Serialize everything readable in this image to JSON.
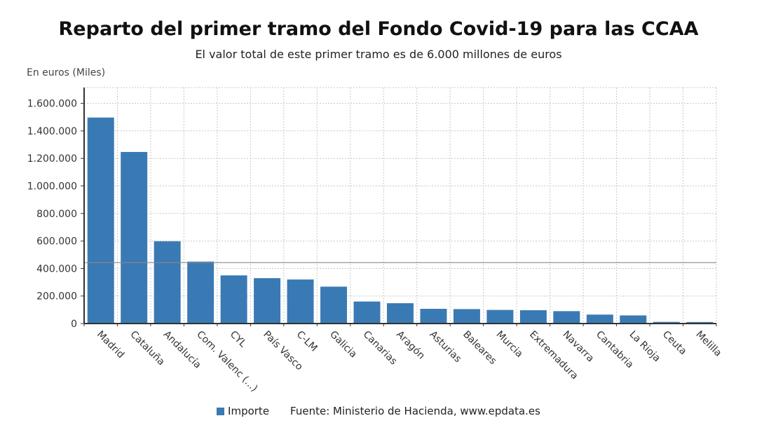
{
  "title": "Reparto del primer tramo del Fondo Covid-19 para las CCAA",
  "subtitle": "El valor total de este primer tramo es de 6.000 millones de euros",
  "unit_label": "En euros (Miles)",
  "legend": {
    "series_label": "Importe",
    "source": "Fuente: Ministerio de Hacienda, www.epdata.es"
  },
  "colors": {
    "bar": "#3a7ab4",
    "grid": "#c8c8c8",
    "axis": "#333333",
    "ref_line": "#888888"
  },
  "chart_data": {
    "type": "bar",
    "categories": [
      "Madrid",
      "Cataluña",
      "Andalucía",
      "Com. Valenc (...)",
      "CYL",
      "País Vasco",
      "C-LM",
      "Galicia",
      "Canarias",
      "Aragón",
      "Asturias",
      "Baleares",
      "Murcia",
      "Extremadura",
      "Navarra",
      "Cantabria",
      "La Rioja",
      "Ceuta",
      "Melilla"
    ],
    "series": [
      {
        "name": "Importe",
        "values": [
          1497000,
          1247000,
          598000,
          450000,
          350000,
          330000,
          320000,
          268000,
          160000,
          148000,
          107000,
          105000,
          99000,
          97000,
          90000,
          65000,
          59000,
          12000,
          11000
        ]
      }
    ],
    "yticks": [
      0,
      200000,
      400000,
      600000,
      800000,
      1000000,
      1200000,
      1400000,
      1600000
    ],
    "ytick_labels": [
      "0",
      "200.000",
      "400.000",
      "600.000",
      "800.000",
      "1.000.000",
      "1.200.000",
      "1.400.000",
      "1.600.000"
    ],
    "ylim": [
      0,
      1715000
    ],
    "reference_line": 443000,
    "grid": true,
    "legend_position": "bottom"
  }
}
